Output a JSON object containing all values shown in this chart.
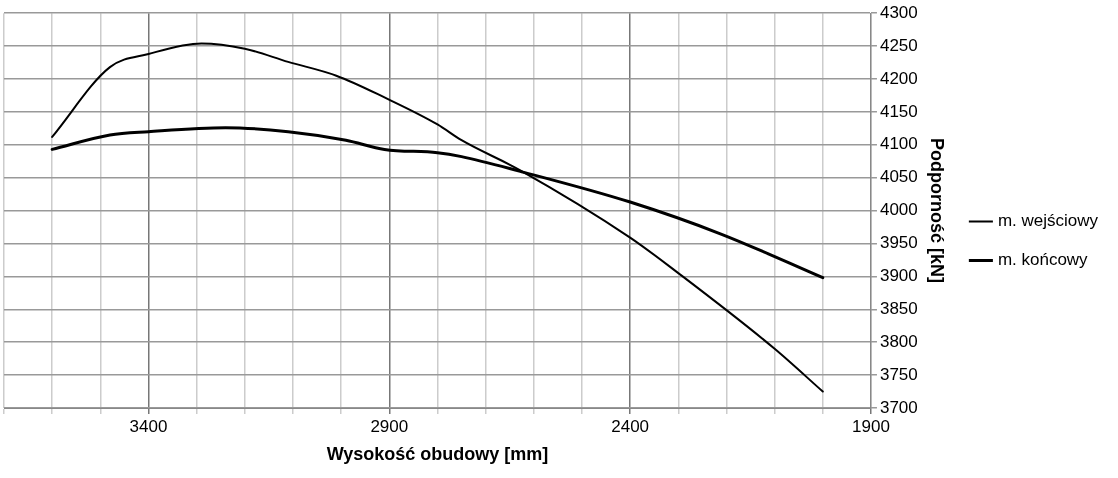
{
  "chart_data": {
    "type": "line",
    "xlabel": "Wysokość obudowy [mm]",
    "ylabel": "Podporność [kN]",
    "xlim": [
      3700,
      1900
    ],
    "ylim": [
      3700,
      4300
    ],
    "xticks": [
      {
        "value": 3700,
        "label": null
      },
      {
        "value": 3600,
        "label": null
      },
      {
        "value": 3500,
        "label": null
      },
      3400,
      {
        "value": 3300,
        "label": null
      },
      {
        "value": 3200,
        "label": null
      },
      {
        "value": 3100,
        "label": null
      },
      {
        "value": 3000,
        "label": null
      },
      2900,
      {
        "value": 2800,
        "label": null
      },
      {
        "value": 2700,
        "label": null
      },
      {
        "value": 2600,
        "label": null
      },
      {
        "value": 2500,
        "label": null
      },
      2400,
      {
        "value": 2300,
        "label": null
      },
      {
        "value": 2200,
        "label": null
      },
      {
        "value": 2100,
        "label": null
      },
      {
        "value": 2000,
        "label": null
      },
      1900
    ],
    "yticks": [
      3700,
      3750,
      3800,
      3850,
      3900,
      3950,
      4000,
      4050,
      4100,
      4150,
      4200,
      4250,
      4300
    ],
    "grid": true,
    "legend": "right",
    "marker": "none",
    "line_style": "solid",
    "series": [
      {
        "name": "m. wejściowy",
        "color": "#000000",
        "x": [
          3600,
          3480,
          3400,
          3290,
          3200,
          3110,
          3010,
          2910,
          2800,
          2750,
          2630,
          2400,
          2300,
          2100,
          2000
        ],
        "values": [
          4112,
          4218,
          4238,
          4254,
          4246,
          4226,
          4205,
          4172,
          4131,
          4107,
          4062,
          3959,
          3905,
          3790,
          3725
        ]
      },
      {
        "name": "m. końcowy",
        "color": "#000000",
        "x": [
          3600,
          3480,
          3400,
          3240,
          3110,
          2990,
          2910,
          2800,
          2750,
          2630,
          2400,
          2210,
          2000
        ],
        "values": [
          4093,
          4115,
          4120,
          4126,
          4120,
          4107,
          4093,
          4088,
          4082,
          4060,
          4013,
          3964,
          3898
        ]
      }
    ]
  }
}
